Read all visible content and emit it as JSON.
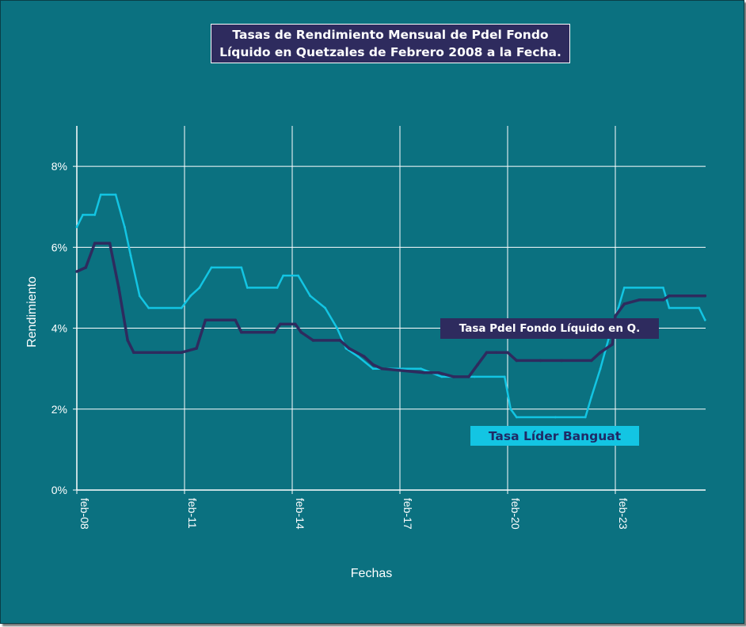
{
  "title": {
    "line1": "Tasas de Rendimiento Mensual de Pdel Fondo",
    "line2": "Líquido en Quetzales de Febrero 2008 a la Fecha."
  },
  "colors": {
    "background": "#0B7180",
    "fondo_series": "#2E2B5E",
    "banguat_series": "#13C5E3",
    "grid": "#ffffff",
    "title_box": "#2E2B5E"
  },
  "chart_data": {
    "type": "line",
    "title": "Tasas de Rendimiento Mensual de Pdel Fondo Líquido en Quetzales de Febrero 2008 a la Fecha.",
    "xlabel": "Fechas",
    "ylabel": "Rendimiento",
    "x_tick_labels": [
      "feb-08",
      "feb-11",
      "feb-14",
      "feb-17",
      "feb-20",
      "feb-23"
    ],
    "y_tick_labels": [
      "0%",
      "2%",
      "4%",
      "6%",
      "8%"
    ],
    "xlim": [
      "2008-02",
      "2025-08"
    ],
    "ylim": [
      0,
      0.09
    ],
    "grid": true,
    "series": [
      {
        "name": "Tasa Pdel Fondo Líquido en Q.",
        "color": "#2E2B5E",
        "points": [
          [
            "2008-02",
            0.054
          ],
          [
            "2008-05",
            0.055
          ],
          [
            "2008-08",
            0.061
          ],
          [
            "2009-01",
            0.061
          ],
          [
            "2009-04",
            0.05
          ],
          [
            "2009-07",
            0.037
          ],
          [
            "2009-09",
            0.034
          ],
          [
            "2010-06",
            0.034
          ],
          [
            "2011-01",
            0.034
          ],
          [
            "2011-06",
            0.035
          ],
          [
            "2011-09",
            0.042
          ],
          [
            "2012-07",
            0.042
          ],
          [
            "2012-09",
            0.039
          ],
          [
            "2013-08",
            0.039
          ],
          [
            "2013-10",
            0.041
          ],
          [
            "2014-03",
            0.041
          ],
          [
            "2014-05",
            0.039
          ],
          [
            "2014-09",
            0.037
          ],
          [
            "2015-06",
            0.037
          ],
          [
            "2015-09",
            0.035
          ],
          [
            "2016-02",
            0.033
          ],
          [
            "2016-05",
            0.031
          ],
          [
            "2016-08",
            0.03
          ],
          [
            "2017-10",
            0.029
          ],
          [
            "2018-03",
            0.029
          ],
          [
            "2018-08",
            0.028
          ],
          [
            "2019-01",
            0.028
          ],
          [
            "2019-04",
            0.031
          ],
          [
            "2019-07",
            0.034
          ],
          [
            "2019-10",
            0.034
          ],
          [
            "2020-02",
            0.034
          ],
          [
            "2020-05",
            0.032
          ],
          [
            "2021-01",
            0.032
          ],
          [
            "2021-08",
            0.032
          ],
          [
            "2022-06",
            0.032
          ],
          [
            "2022-09",
            0.034
          ],
          [
            "2023-01",
            0.036
          ],
          [
            "2023-02",
            0.043
          ],
          [
            "2023-05",
            0.046
          ],
          [
            "2023-10",
            0.047
          ],
          [
            "2024-06",
            0.047
          ],
          [
            "2024-08",
            0.048
          ],
          [
            "2025-08",
            0.048
          ]
        ]
      },
      {
        "name": "Tasa Líder Banguat",
        "color": "#13C5E3",
        "points": [
          [
            "2008-02",
            0.065
          ],
          [
            "2008-04",
            0.068
          ],
          [
            "2008-08",
            0.068
          ],
          [
            "2008-10",
            0.073
          ],
          [
            "2009-03",
            0.073
          ],
          [
            "2009-06",
            0.065
          ],
          [
            "2009-08",
            0.058
          ],
          [
            "2009-11",
            0.048
          ],
          [
            "2010-02",
            0.045
          ],
          [
            "2011-01",
            0.045
          ],
          [
            "2011-04",
            0.048
          ],
          [
            "2011-07",
            0.05
          ],
          [
            "2011-11",
            0.055
          ],
          [
            "2012-09",
            0.055
          ],
          [
            "2012-11",
            0.05
          ],
          [
            "2013-09",
            0.05
          ],
          [
            "2013-11",
            0.053
          ],
          [
            "2014-04",
            0.053
          ],
          [
            "2014-08",
            0.048
          ],
          [
            "2015-01",
            0.045
          ],
          [
            "2015-05",
            0.04
          ],
          [
            "2015-08",
            0.035
          ],
          [
            "2015-12",
            0.033
          ],
          [
            "2016-05",
            0.03
          ],
          [
            "2017-03",
            0.03
          ],
          [
            "2017-09",
            0.03
          ],
          [
            "2018-04",
            0.028
          ],
          [
            "2019-03",
            0.028
          ],
          [
            "2020-01",
            0.028
          ],
          [
            "2020-03",
            0.02
          ],
          [
            "2020-05",
            0.018
          ],
          [
            "2021-06",
            0.018
          ],
          [
            "2022-04",
            0.018
          ],
          [
            "2022-06",
            0.023
          ],
          [
            "2022-09",
            0.03
          ],
          [
            "2022-12",
            0.038
          ],
          [
            "2023-03",
            0.045
          ],
          [
            "2023-05",
            0.05
          ],
          [
            "2024-06",
            0.05
          ],
          [
            "2024-08",
            0.045
          ],
          [
            "2025-06",
            0.045
          ],
          [
            "2025-08",
            0.042
          ]
        ]
      }
    ]
  }
}
